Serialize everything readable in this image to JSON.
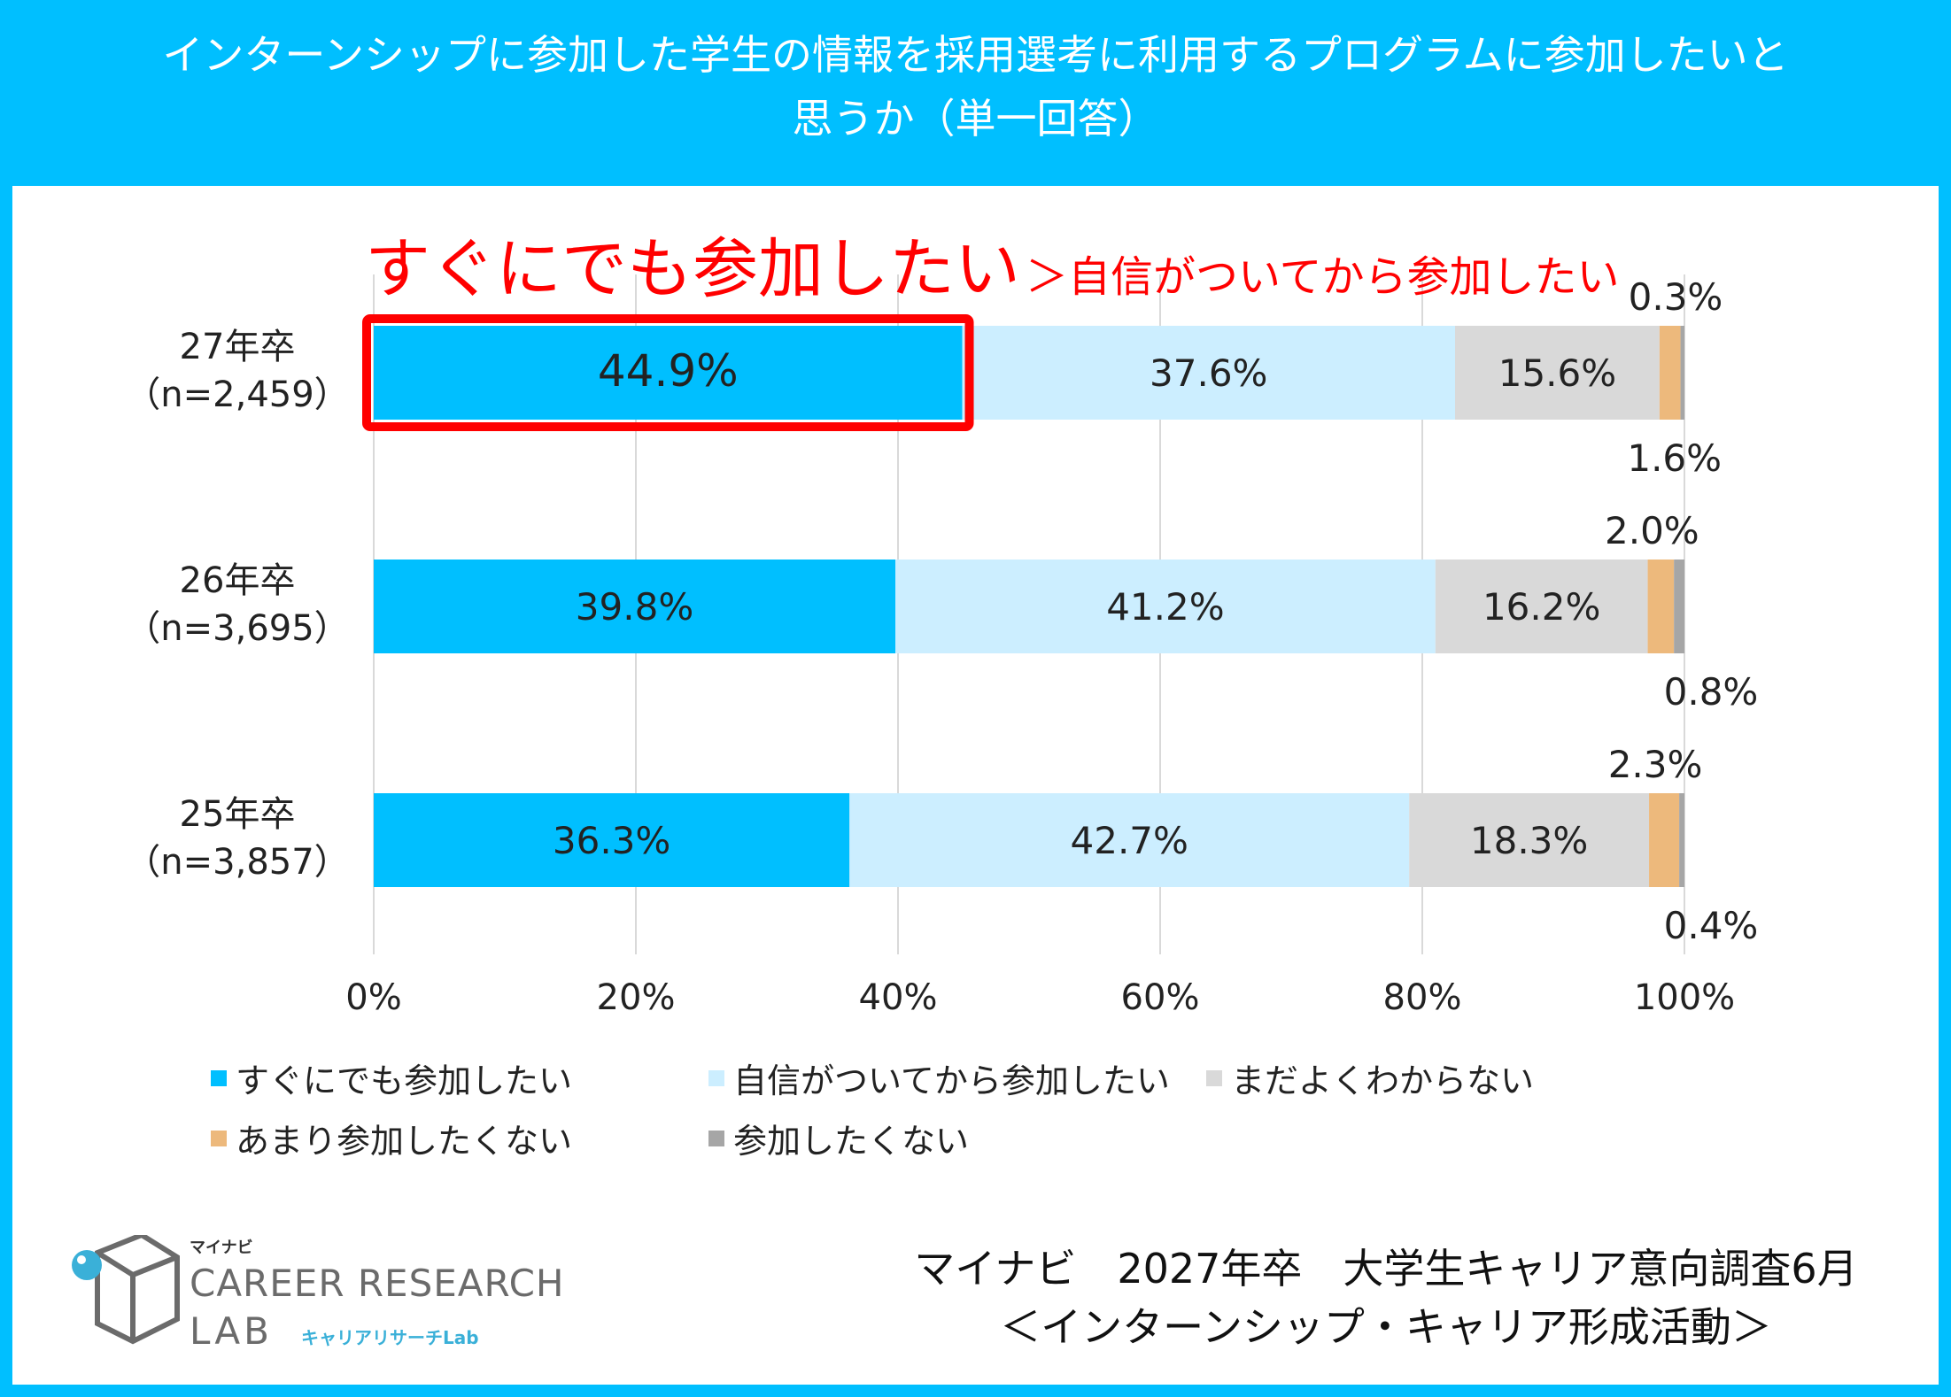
{
  "header": {
    "title": "インターンシップに参加した学生の情報を採用選考に利用するプログラムに参加したいと\n思うか（単一回答）"
  },
  "headline": {
    "main": "すぐにでも参加したい",
    "sub": "＞自信がついてから参加したい"
  },
  "colors": {
    "header_bg": "#00BFFF",
    "highlight_box": "#ff0000",
    "series": [
      "#00BFFF",
      "#CCEEFF",
      "#D9D9D9",
      "#EDB97C",
      "#A6A6A6"
    ]
  },
  "chart_data": {
    "type": "bar",
    "orientation": "horizontal",
    "stacked": true,
    "categories": [
      "27年卒\n（n=2,459）",
      "26年卒\n（n=3,695）",
      "25年卒\n（n=3,857）"
    ],
    "series": [
      {
        "name": "すぐにでも参加したい",
        "values": [
          44.9,
          39.8,
          36.3
        ]
      },
      {
        "name": "自信がついてから参加したい",
        "values": [
          37.6,
          41.2,
          42.7
        ]
      },
      {
        "name": "まだよくわからない",
        "values": [
          15.6,
          16.2,
          18.3
        ]
      },
      {
        "name": "あまり参加したくない",
        "values": [
          1.6,
          2.0,
          2.3
        ]
      },
      {
        "name": "参加したくない",
        "values": [
          0.3,
          0.8,
          0.4
        ]
      }
    ],
    "value_labels": [
      [
        "44.9%",
        "37.6%",
        "15.6%",
        "1.6%",
        "0.3%"
      ],
      [
        "39.8%",
        "41.2%",
        "16.2%",
        "2.0%",
        "0.8%"
      ],
      [
        "36.3%",
        "42.7%",
        "18.3%",
        "2.3%",
        "0.4%"
      ]
    ],
    "x_ticks": [
      "0%",
      "20%",
      "40%",
      "60%",
      "80%",
      "100%"
    ],
    "xlim": [
      0,
      100
    ],
    "grid": "vertical",
    "legend_position": "bottom",
    "highlighted": "27年卒 すぐにでも参加したい"
  },
  "logo": {
    "top": "マイナビ",
    "line1": "CAREER RESEARCH",
    "line2": "LAB",
    "sub": "キャリアリサーチLab"
  },
  "source": {
    "line1": "マイナビ　2027年卒　大学生キャリア意向調査6月",
    "line2": "＜インターンシップ・キャリア形成活動＞"
  }
}
